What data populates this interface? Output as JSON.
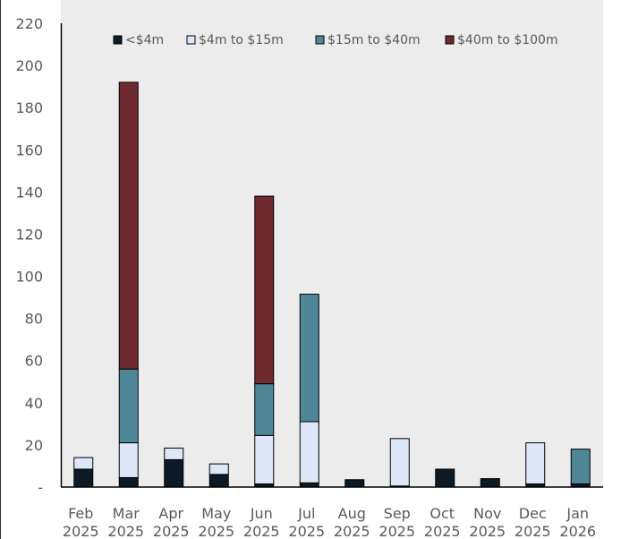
{
  "chart_data": {
    "type": "bar",
    "stacked": true,
    "categories": [
      [
        "Feb",
        "2025"
      ],
      [
        "Mar",
        "2025"
      ],
      [
        "Apr",
        "2025"
      ],
      [
        "May",
        "2025"
      ],
      [
        "Jun",
        "2025"
      ],
      [
        "Jul",
        "2025"
      ],
      [
        "Aug",
        "2025"
      ],
      [
        "Sep",
        "2025"
      ],
      [
        "Oct",
        "2025"
      ],
      [
        "Nov",
        "2025"
      ],
      [
        "Dec",
        "2025"
      ],
      [
        "Jan",
        "2026"
      ]
    ],
    "series": [
      {
        "name": "<$4m",
        "color": "#0b1a24",
        "values": [
          8.5,
          4.5,
          13,
          6,
          1.5,
          2,
          3.5,
          0.5,
          8.5,
          4,
          1.5,
          1.5
        ]
      },
      {
        "name": "$4m to $15m",
        "color": "#dde7f7",
        "values": [
          5.5,
          16.5,
          5.5,
          5,
          23,
          29,
          0,
          22.5,
          0,
          0,
          19.5,
          0
        ]
      },
      {
        "name": "$15m to $40m",
        "color": "#4f8799",
        "values": [
          0,
          35,
          0,
          0,
          24.5,
          60.5,
          0,
          0,
          0,
          0,
          0,
          16.5
        ]
      },
      {
        "name": "$40m to $100m",
        "color": "#6e2a2e",
        "values": [
          0,
          136,
          0,
          0,
          89,
          0,
          0,
          0,
          0,
          0,
          0,
          0
        ]
      }
    ],
    "ylim": [
      0,
      220
    ],
    "yticks": [
      0,
      20,
      40,
      60,
      80,
      100,
      120,
      140,
      160,
      180,
      200,
      220
    ],
    "ytick_labels": [
      "-",
      "20",
      "40",
      "60",
      "80",
      "100",
      "120",
      "140",
      "160",
      "180",
      "200",
      "220"
    ],
    "title": "",
    "xlabel": "",
    "ylabel": "",
    "grid": false,
    "legend_position": "top"
  }
}
